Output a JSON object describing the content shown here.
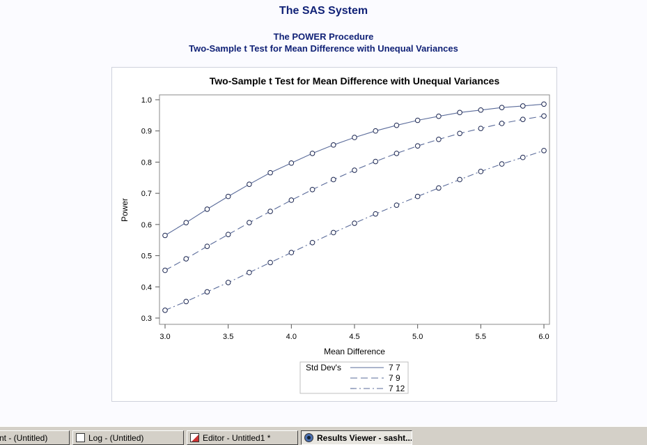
{
  "header": {
    "system_title": "The SAS System",
    "procedure_title": "The POWER Procedure",
    "subtitle": "Two-Sample t Test for Mean Difference with Unequal Variances"
  },
  "chart_data": {
    "type": "line",
    "title": "Two-Sample t Test for Mean Difference with Unequal Variances",
    "xlabel": "Mean Difference",
    "ylabel": "Power",
    "xlim": [
      3.0,
      6.0
    ],
    "ylim": [
      0.3,
      1.0
    ],
    "x_ticks": [
      "3.0",
      "3.5",
      "4.0",
      "4.5",
      "5.0",
      "5.5",
      "6.0"
    ],
    "y_ticks": [
      "0.3",
      "0.4",
      "0.5",
      "0.6",
      "0.7",
      "0.8",
      "0.9",
      "1.0"
    ],
    "grid": false,
    "legend_title": "Std Dev's",
    "legend_placement": "bottom",
    "line_color": "#5a6b9a",
    "x": [
      3.0,
      3.1667,
      3.3333,
      3.5,
      3.6667,
      3.8333,
      4.0,
      4.1667,
      4.3333,
      4.5,
      4.6667,
      4.8333,
      5.0,
      5.1667,
      5.3333,
      5.5,
      5.6667,
      5.8333,
      6.0
    ],
    "series": [
      {
        "name": "7 7",
        "dash": "solid",
        "values": [
          0.565,
          0.606,
          0.649,
          0.69,
          0.729,
          0.766,
          0.797,
          0.828,
          0.855,
          0.879,
          0.9,
          0.918,
          0.934,
          0.947,
          0.959,
          0.967,
          0.975,
          0.98,
          0.986
        ]
      },
      {
        "name": "7 9",
        "dash": "long-dash",
        "values": [
          0.453,
          0.49,
          0.53,
          0.568,
          0.606,
          0.642,
          0.678,
          0.712,
          0.744,
          0.774,
          0.802,
          0.828,
          0.852,
          0.873,
          0.892,
          0.908,
          0.924,
          0.937,
          0.948
        ]
      },
      {
        "name": "7 12",
        "dash": "dash-dot",
        "values": [
          0.325,
          0.353,
          0.384,
          0.414,
          0.446,
          0.478,
          0.51,
          0.542,
          0.574,
          0.604,
          0.634,
          0.662,
          0.69,
          0.717,
          0.744,
          0.77,
          0.794,
          0.815,
          0.837
        ]
      }
    ]
  },
  "taskbar": {
    "items": [
      {
        "label": "nt - (Untitled)",
        "icon": "none"
      },
      {
        "label": "Log - (Untitled)",
        "icon": "log-icon"
      },
      {
        "label": "Editor - Untitled1 *",
        "icon": "editor-icon"
      },
      {
        "label": "Results Viewer - sasht...",
        "icon": "results-viewer-icon"
      }
    ]
  }
}
